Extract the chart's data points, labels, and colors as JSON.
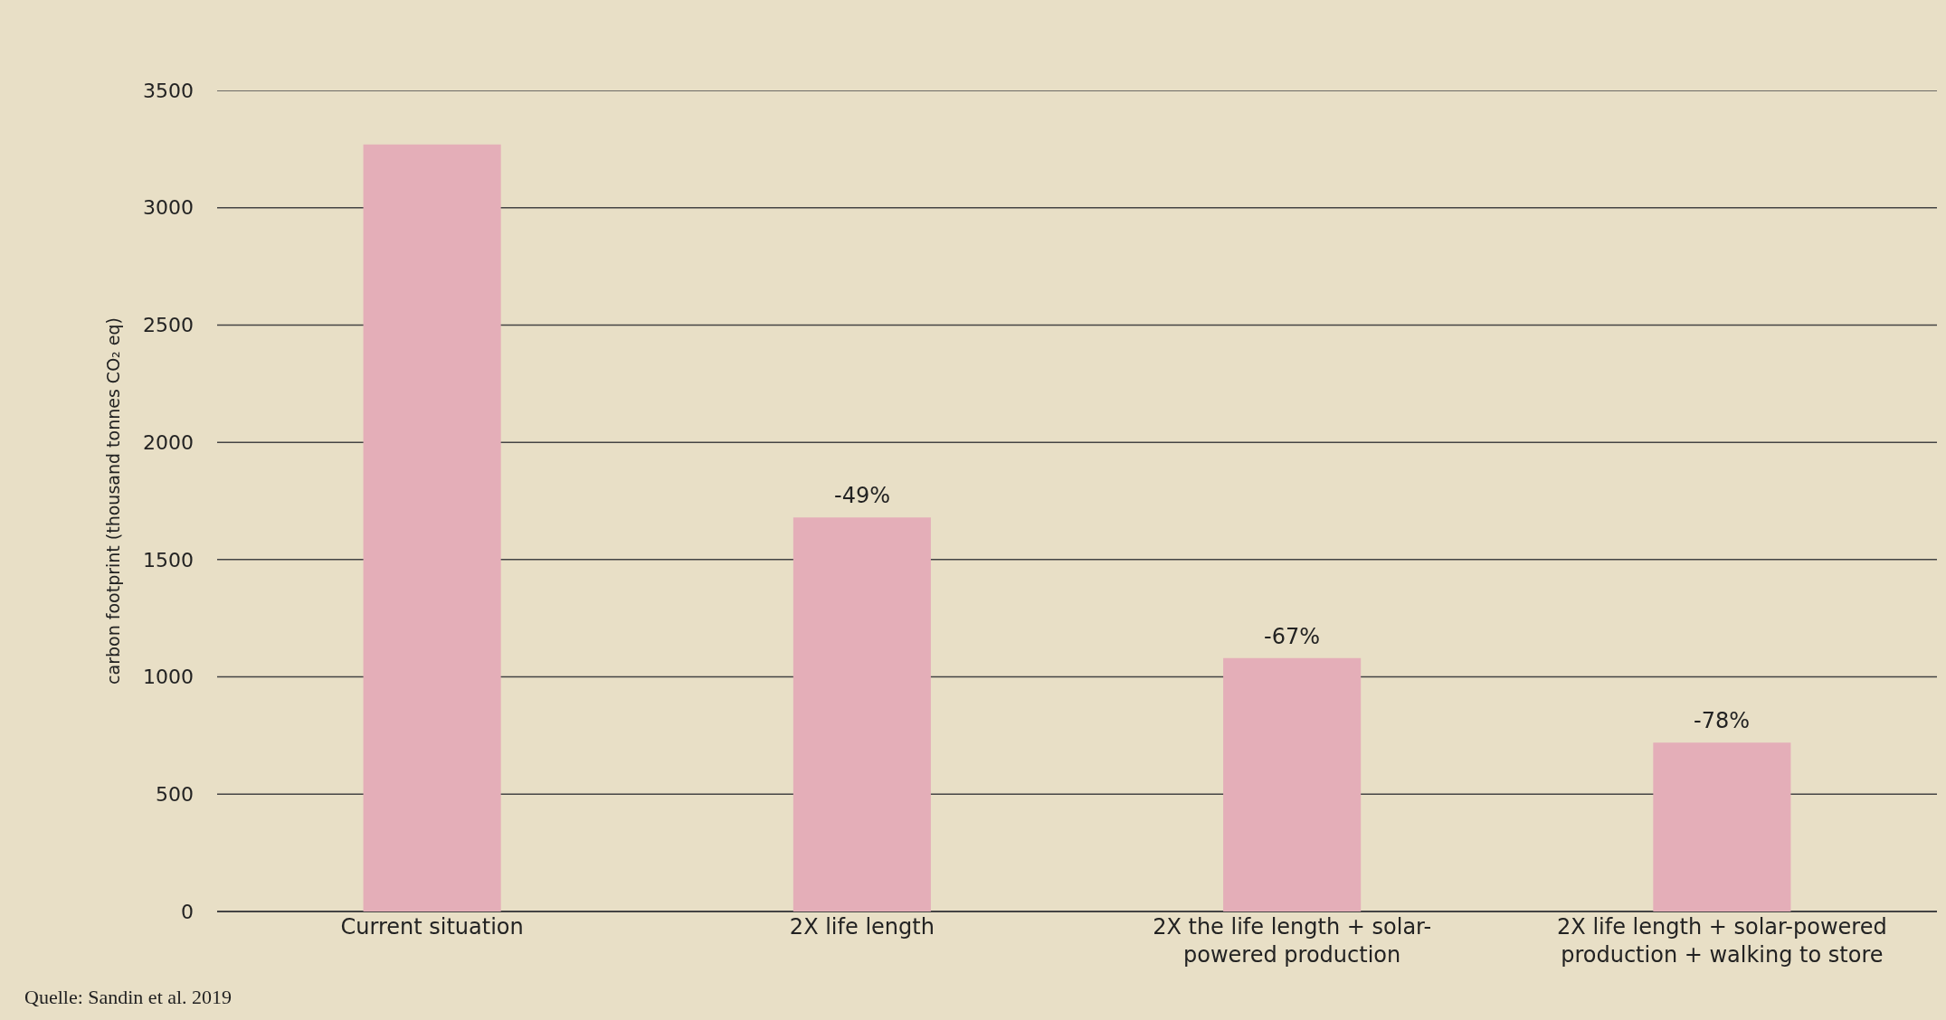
{
  "chart_data": {
    "type": "bar",
    "ylabel": "carbon footprint (thousand tonnes CO₂ eq)",
    "categories": [
      "Current situation",
      "2X life length",
      "2X the life length + solar-powered production",
      "2X life length + solar-powered production + walking to store"
    ],
    "values": [
      3270,
      1680,
      1080,
      720
    ],
    "color": "#e4aeb8",
    "ylim": [
      0,
      3500
    ],
    "yticks": [
      0,
      500,
      1000,
      1500,
      2000,
      2500,
      3000,
      3500
    ],
    "grid": "y",
    "annotations": [
      {
        "text": "-49%",
        "x": "2X life length",
        "y": 1680
      },
      {
        "text": "-67%",
        "x": "2X the life length + solar-powered production",
        "y": 1080
      },
      {
        "text": "-78%",
        "x": "2X life length + solar-powered production + walking to store",
        "y": 720
      },
      "Quelle: Sandin et al. 2019"
    ]
  }
}
